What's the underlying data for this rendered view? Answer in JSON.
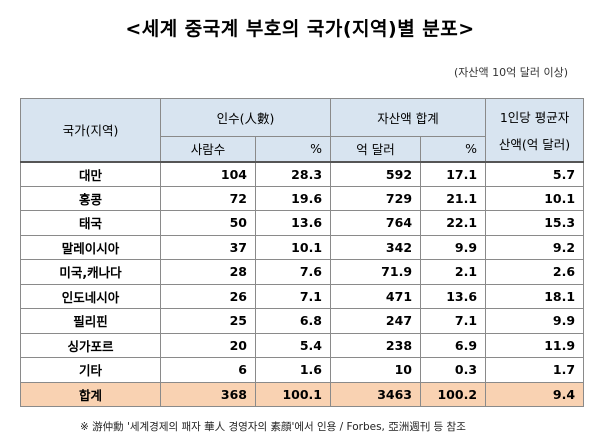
{
  "title": "<세계 중국계 부호의 국가(지역)별 분포>",
  "unit_note": "(자산액 10억 달러 이상)",
  "headers": {
    "country": "국가(지역)",
    "people_group": "인수(人數)",
    "asset_group": "자산액 합계",
    "per_capita_line1": "1인당 평균자",
    "per_capita_line2": "산액(억 달러)",
    "people_count": "사람수",
    "people_pct": "%",
    "asset_amount": "억 달러",
    "asset_pct": "%"
  },
  "rows": [
    {
      "country": "대만",
      "people": "104",
      "people_pct": "28.3",
      "assets": "592",
      "assets_pct": "17.1",
      "avg": "5.7"
    },
    {
      "country": "홍콩",
      "people": "72",
      "people_pct": "19.6",
      "assets": "729",
      "assets_pct": "21.1",
      "avg": "10.1"
    },
    {
      "country": "태국",
      "people": "50",
      "people_pct": "13.6",
      "assets": "764",
      "assets_pct": "22.1",
      "avg": "15.3"
    },
    {
      "country": "말레이시아",
      "people": "37",
      "people_pct": "10.1",
      "assets": "342",
      "assets_pct": "9.9",
      "avg": "9.2"
    },
    {
      "country": "미국,캐나다",
      "people": "28",
      "people_pct": "7.6",
      "assets": "71.9",
      "assets_pct": "2.1",
      "avg": "2.6"
    },
    {
      "country": "인도네시아",
      "people": "26",
      "people_pct": "7.1",
      "assets": "471",
      "assets_pct": "13.6",
      "avg": "18.1"
    },
    {
      "country": "필리핀",
      "people": "25",
      "people_pct": "6.8",
      "assets": "247",
      "assets_pct": "7.1",
      "avg": "9.9"
    },
    {
      "country": "싱가포르",
      "people": "20",
      "people_pct": "5.4",
      "assets": "238",
      "assets_pct": "6.9",
      "avg": "11.9"
    },
    {
      "country": "기타",
      "people": "6",
      "people_pct": "1.6",
      "assets": "10",
      "assets_pct": "0.3",
      "avg": "1.7"
    }
  ],
  "total": {
    "country": "합계",
    "people": "368",
    "people_pct": "100.1",
    "assets": "3463",
    "assets_pct": "100.2",
    "avg": "9.4"
  },
  "footnote": "※ 游仲勳 '세계경제의 패자 華人 경영자의 素顔'에서 인용 / Forbes, 亞洲週刊 등 참조",
  "colors": {
    "header_bg": "#d8e4f0",
    "total_bg": "#f9d2b2",
    "border": "#8a8a8a"
  }
}
